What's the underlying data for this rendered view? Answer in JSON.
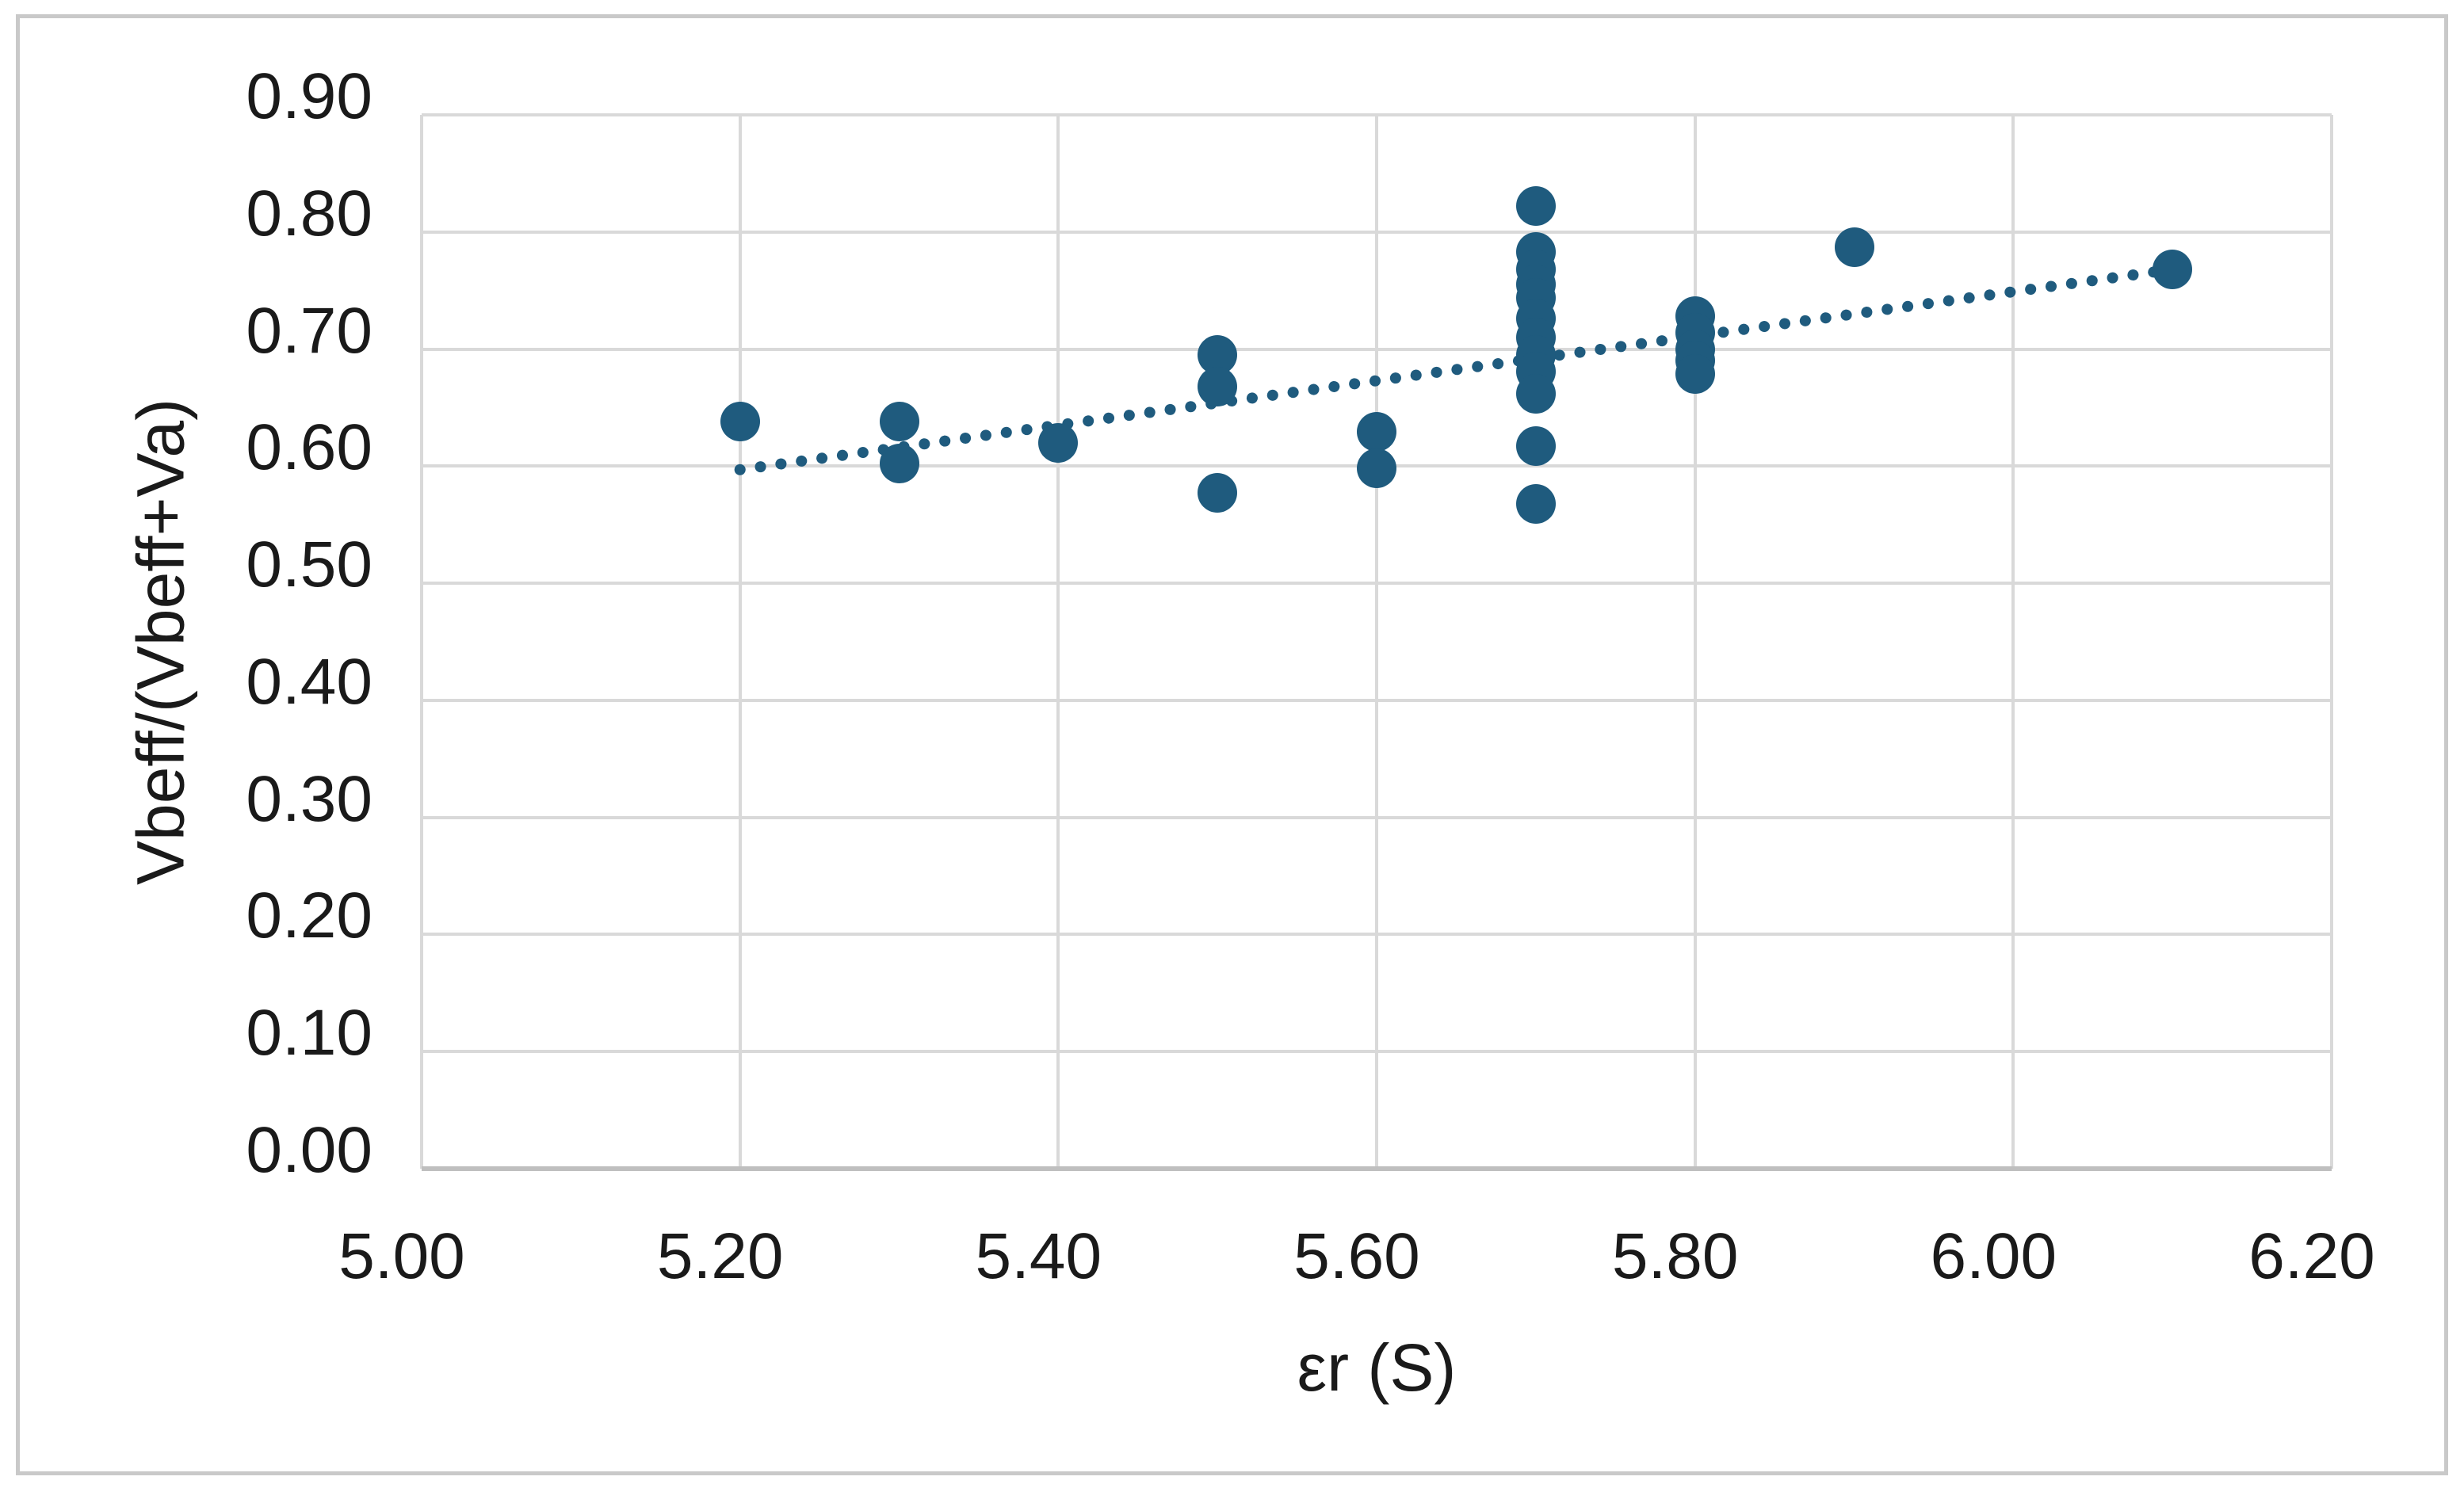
{
  "chart_data": {
    "type": "scatter",
    "title": "",
    "xlabel": "εr (S)",
    "ylabel": "Vbeff/(Vbeff+Va)",
    "xlim": [
      5.0,
      6.2
    ],
    "ylim": [
      0.0,
      0.9
    ],
    "grid": true,
    "legend_position": "none",
    "marker_color": "#1f5b7e",
    "trendline_color": "#1f5b7e",
    "gridline_color": "#d9d9d9",
    "axis_line_color": "#bfbfbf",
    "tick_text_color": "#1a1a1a",
    "xticks": [
      {
        "value": 5.0,
        "label": "5.00"
      },
      {
        "value": 5.2,
        "label": "5.20"
      },
      {
        "value": 5.4,
        "label": "5.40"
      },
      {
        "value": 5.6,
        "label": "5.60"
      },
      {
        "value": 5.8,
        "label": "5.80"
      },
      {
        "value": 6.0,
        "label": "6.00"
      },
      {
        "value": 6.2,
        "label": "6.20"
      }
    ],
    "yticks": [
      {
        "value": 0.0,
        "label": "0.00"
      },
      {
        "value": 0.1,
        "label": "0.10"
      },
      {
        "value": 0.2,
        "label": "0.20"
      },
      {
        "value": 0.3,
        "label": "0.30"
      },
      {
        "value": 0.4,
        "label": "0.40"
      },
      {
        "value": 0.5,
        "label": "0.50"
      },
      {
        "value": 0.6,
        "label": "0.60"
      },
      {
        "value": 0.7,
        "label": "0.70"
      },
      {
        "value": 0.8,
        "label": "0.80"
      },
      {
        "value": 0.9,
        "label": "0.90"
      }
    ],
    "series": [
      {
        "name": "Vbeff/(Vbeff+Va) vs εr",
        "points": [
          [
            5.2,
            0.638
          ],
          [
            5.3,
            0.638
          ],
          [
            5.3,
            0.602
          ],
          [
            5.4,
            0.62
          ],
          [
            5.5,
            0.695
          ],
          [
            5.5,
            0.668
          ],
          [
            5.5,
            0.577
          ],
          [
            5.6,
            0.629
          ],
          [
            5.6,
            0.598
          ],
          [
            5.7,
            0.822
          ],
          [
            5.7,
            0.783
          ],
          [
            5.7,
            0.768
          ],
          [
            5.7,
            0.755
          ],
          [
            5.7,
            0.744
          ],
          [
            5.7,
            0.726
          ],
          [
            5.7,
            0.71
          ],
          [
            5.7,
            0.695
          ],
          [
            5.7,
            0.681
          ],
          [
            5.7,
            0.662
          ],
          [
            5.7,
            0.617
          ],
          [
            5.7,
            0.568
          ],
          [
            5.8,
            0.728
          ],
          [
            5.8,
            0.714
          ],
          [
            5.8,
            0.7
          ],
          [
            5.8,
            0.69
          ],
          [
            5.8,
            0.679
          ],
          [
            5.9,
            0.787
          ],
          [
            6.1,
            0.768
          ]
        ]
      }
    ],
    "trendline": {
      "style": "dotted",
      "start": {
        "x": 5.2,
        "y": 0.597
      },
      "end": {
        "x": 6.1,
        "y": 0.768
      }
    }
  }
}
